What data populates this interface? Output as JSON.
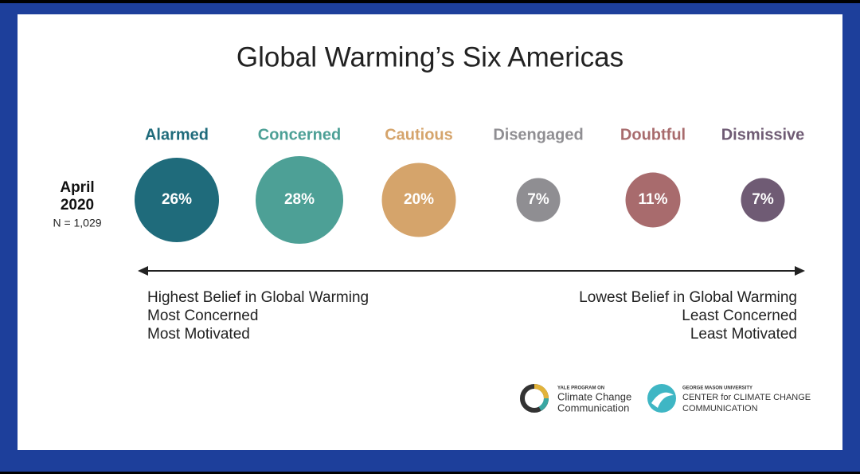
{
  "chart_data": {
    "type": "bubble",
    "title": "Global Warming’s Six Americas",
    "categories": [
      "Alarmed",
      "Concerned",
      "Cautious",
      "Disengaged",
      "Doubtful",
      "Dismissive"
    ],
    "values": [
      26,
      28,
      20,
      7,
      11,
      7
    ],
    "value_labels": [
      "26%",
      "28%",
      "20%",
      "7%",
      "11%",
      "7%"
    ],
    "colors": [
      "#1f6b7b",
      "#4da096",
      "#d5a46b",
      "#8f8e92",
      "#a86b6d",
      "#6f5b74"
    ],
    "row_label": [
      "April",
      "2020"
    ],
    "sample": "N = 1,029",
    "left_notes": [
      "Highest Belief in Global Warming",
      "Most Concerned",
      "Most Motivated"
    ],
    "right_notes": [
      "Lowest Belief in Global Warming",
      "Least Concerned",
      "Least Motivated"
    ]
  },
  "logos": [
    {
      "lines": [
        "YALE PROGRAM ON",
        "Climate Change",
        "Communication"
      ]
    },
    {
      "lines": [
        "GEORGE MASON UNIVERSITY",
        "CENTER for CLIMATE CHANGE",
        "COMMUNICATION"
      ]
    }
  ]
}
